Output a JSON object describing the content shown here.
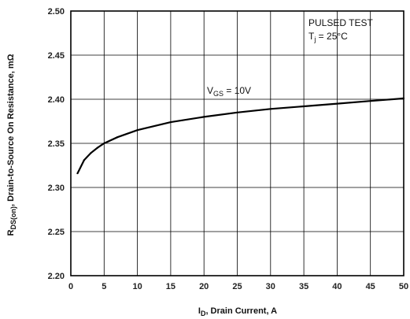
{
  "chart_data": {
    "type": "line",
    "xlabel": {
      "main": "I",
      "sub": "D",
      "rest": ", Drain Current, A"
    },
    "ylabel": {
      "main": "R",
      "sub": "DS(on)",
      "rest": ", Drain-to-Source On Resistance, mΩ"
    },
    "xlim": [
      0,
      50
    ],
    "ylim": [
      2.2,
      2.5
    ],
    "x_ticks": [
      "0",
      "5",
      "10",
      "15",
      "20",
      "25",
      "30",
      "35",
      "40",
      "45",
      "50"
    ],
    "y_ticks": [
      "2.20",
      "2.25",
      "2.30",
      "2.35",
      "2.40",
      "2.45",
      "2.50"
    ],
    "grid": true,
    "annotations": {
      "test_line1": "PULSED TEST",
      "test_line2_main": "T",
      "test_line2_sub": "j",
      "test_line2_rest": " = 25°C",
      "curve_main": "V",
      "curve_sub": "GS",
      "curve_rest": " = 10V"
    },
    "series": [
      {
        "x": [
          1,
          2,
          3,
          4,
          5,
          7,
          10,
          15,
          20,
          25,
          30,
          35,
          40,
          45,
          50
        ],
        "y": [
          2.316,
          2.331,
          2.339,
          2.345,
          2.35,
          2.357,
          2.365,
          2.374,
          2.38,
          2.385,
          2.389,
          2.392,
          2.395,
          2.398,
          2.401
        ]
      }
    ]
  }
}
